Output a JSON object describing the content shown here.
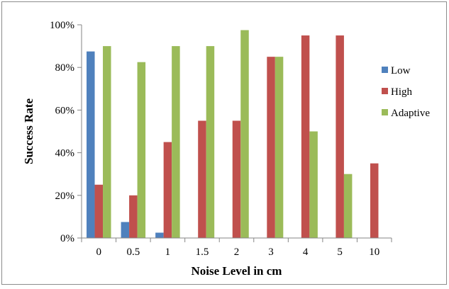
{
  "chart_data": {
    "type": "bar",
    "title": "",
    "xlabel": "Noise Level in cm",
    "ylabel": "Success Rate",
    "categories": [
      "0",
      "0.5",
      "1",
      "1.5",
      "2",
      "3",
      "4",
      "5",
      "10"
    ],
    "series": [
      {
        "name": "Low",
        "values": [
          87.5,
          7.5,
          2.5,
          0,
          0,
          0,
          0,
          0,
          0
        ]
      },
      {
        "name": "High",
        "values": [
          25,
          20,
          45,
          55,
          55,
          85,
          95,
          95,
          35
        ]
      },
      {
        "name": "Adaptive",
        "values": [
          90,
          82.5,
          90,
          90,
          97.5,
          85,
          50,
          30,
          0
        ]
      }
    ],
    "ylim": [
      0,
      100
    ],
    "yticks": [
      0,
      20,
      40,
      60,
      80,
      100
    ],
    "ytick_labels": [
      "0%",
      "20%",
      "40%",
      "60%",
      "80%",
      "100%"
    ],
    "grid": false,
    "legend_position": "right",
    "colors": {
      "Low": "#4f81bd",
      "High": "#c0504d",
      "Adaptive": "#9bbb59",
      "axis": "#868686"
    }
  }
}
